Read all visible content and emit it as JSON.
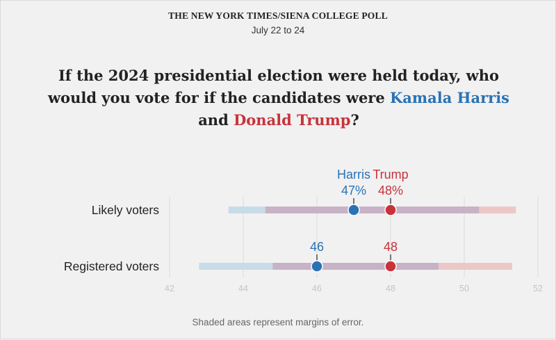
{
  "header": {
    "source": "THE NEW YORK TIMES/SIENA COLLEGE POLL",
    "date": "July 22 to 24"
  },
  "question": {
    "before": "If the 2024 presidential election were held today, who would you vote for if the candidates were ",
    "candidate_a": "Kamala Harris",
    "middle": " and ",
    "candidate_b": "Donald Trump",
    "after": "?"
  },
  "note": "Shaded areas represent margins of error.",
  "colors": {
    "harris": "#2a72b4",
    "trump": "#c8333b",
    "harris_band": "#c8dbe8",
    "trump_band": "#ecc7c8",
    "overlap_band": "#c7b3c5",
    "grid": "#dadada",
    "tick_label": "#c4c4c4"
  },
  "chart_data": {
    "type": "dot-range",
    "xlim": [
      42,
      52
    ],
    "x_ticks": [
      42,
      44,
      46,
      48,
      50,
      52
    ],
    "x_tick_labels": [
      "42",
      "44",
      "46",
      "48",
      "50",
      "52"
    ],
    "grid": true,
    "categories": [
      "Likely voters",
      "Registered voters"
    ],
    "series": [
      {
        "name": "Harris",
        "color_key": "harris",
        "values": [
          47,
          46
        ],
        "labels": [
          "47%",
          "46"
        ],
        "margin_low": [
          43.6,
          42.8
        ],
        "margin_high": [
          50.4,
          49.3
        ]
      },
      {
        "name": "Trump",
        "color_key": "trump",
        "values": [
          48,
          48
        ],
        "labels": [
          "48%",
          "48"
        ],
        "margin_low": [
          44.6,
          44.8
        ],
        "margin_high": [
          51.4,
          51.3
        ]
      }
    ]
  }
}
